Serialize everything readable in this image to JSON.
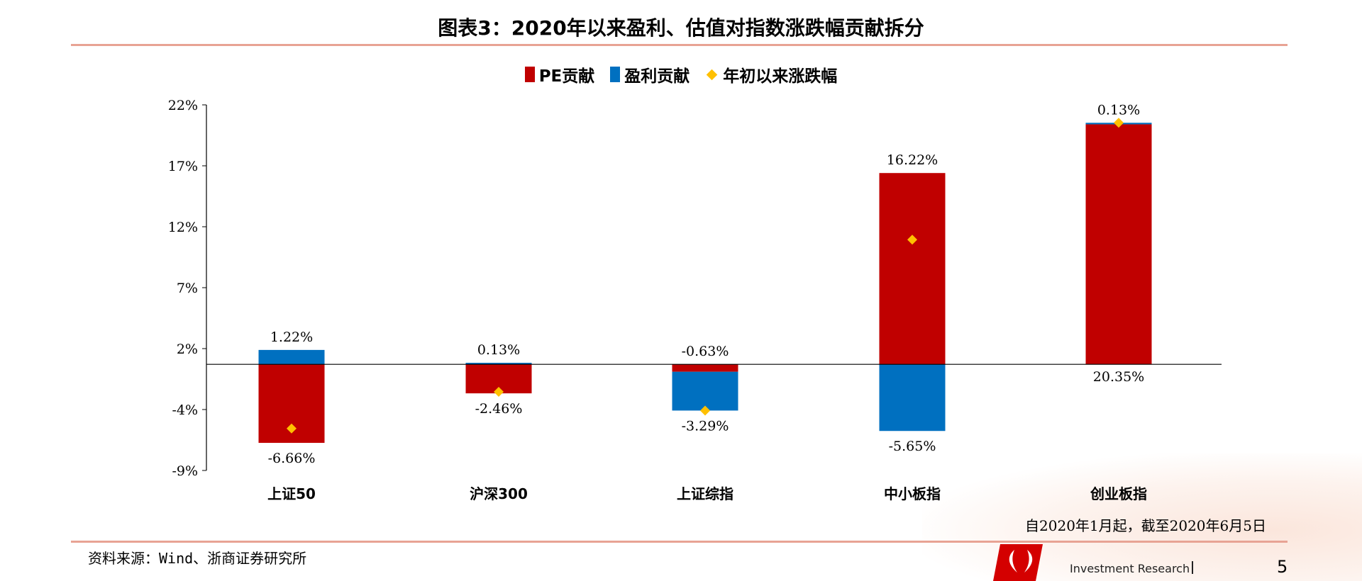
{
  "title": "图表3：2020年以来盈利、估值对指数涨跌幅贡献拆分",
  "chart_data": {
    "type": "bar",
    "stacked": true,
    "categories": [
      "上证50",
      "沪深300",
      "上证综指",
      "中小板指",
      "创业板指"
    ],
    "series": [
      {
        "name": "PE贡献",
        "type": "bar",
        "color": "#C00000",
        "values": [
          -6.66,
          -2.46,
          -0.63,
          16.22,
          20.35
        ],
        "labels": [
          "-6.66%",
          "-2.46%",
          "-0.63%",
          "16.22%",
          "20.35%"
        ]
      },
      {
        "name": "盈利贡献",
        "type": "bar",
        "color": "#0070C0",
        "values": [
          1.22,
          0.13,
          -3.29,
          -5.65,
          0.13
        ],
        "labels": [
          "1.22%",
          "0.13%",
          "-3.29%",
          "-5.65%",
          "0.13%"
        ]
      },
      {
        "name": "年初以来涨跌幅",
        "type": "scatter",
        "marker": "diamond",
        "color": "#FFC000",
        "values": [
          -5.44,
          -2.33,
          -3.92,
          10.57,
          20.48
        ]
      }
    ],
    "ylim": [
      -9,
      22
    ],
    "yticks": [
      "22%",
      "17%",
      "12%",
      "7%",
      "2%",
      "-4%",
      "-9%"
    ],
    "legend": "top",
    "grid": false
  },
  "note": "自2020年1月起，截至2020年6月5日",
  "source": "资料来源：Wind、浙商证券研究所",
  "footer": {
    "brand": "Investment Research",
    "page": "5"
  }
}
